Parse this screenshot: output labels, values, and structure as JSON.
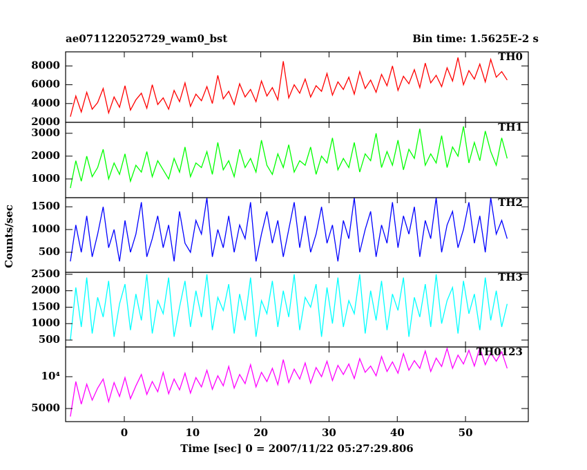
{
  "chart_data": [
    {
      "type": "line",
      "title": "ae071122052729_wam0_bst",
      "subtitle": "Bin time: 1.5625E-2 s",
      "ylim": [
        2000,
        9500
      ],
      "yticks": [
        2000,
        4000,
        6000,
        8000
      ],
      "series": [
        {
          "name": "TH0",
          "color": "#ff0000",
          "values": [
            2600,
            4800,
            3100,
            5200,
            3400,
            4100,
            5600,
            3000,
            4700,
            3600,
            5900,
            3300,
            4400,
            5100,
            3500,
            6000,
            3900,
            4600,
            3400,
            5400,
            4200,
            6200,
            3700,
            5000,
            4300,
            5800,
            4000,
            7000,
            4500,
            5300,
            3900,
            6100,
            4700,
            5500,
            4200,
            6400,
            4800,
            5700,
            4400,
            8500,
            4600,
            6000,
            5100,
            6600,
            4700,
            5900,
            5300,
            7200,
            4900,
            6300,
            5500,
            6800,
            5000,
            7400,
            5600,
            6500,
            5200,
            7100,
            5900,
            8000,
            5400,
            6900,
            6100,
            7600,
            5700,
            8300,
            6200,
            7000,
            5800,
            7800,
            6400,
            8900,
            6000,
            7500,
            6600,
            8200,
            6300,
            8700,
            6800,
            7400,
            6500
          ]
        }
      ]
    },
    {
      "type": "line",
      "ylim": [
        180,
        3480
      ],
      "yticks": [
        1000,
        2000,
        3000
      ],
      "series": [
        {
          "name": "TH1",
          "color": "#00ff00",
          "values": [
            600,
            1800,
            900,
            2000,
            1100,
            1500,
            2300,
            1000,
            1700,
            1200,
            2100,
            900,
            1600,
            1300,
            2200,
            1100,
            1800,
            1400,
            1000,
            1900,
            1300,
            2400,
            1100,
            1700,
            1500,
            2200,
            1200,
            2600,
            1400,
            1800,
            1100,
            2300,
            1500,
            1900,
            1300,
            2700,
            1600,
            1200,
            2100,
            1500,
            2500,
            1300,
            1800,
            1600,
            2400,
            1200,
            2000,
            1700,
            2800,
            1400,
            1900,
            1500,
            2600,
            1300,
            2100,
            1800,
            3000,
            1500,
            2200,
            1600,
            2700,
            1400,
            2300,
            1900,
            3200,
            1600,
            2100,
            1700,
            2900,
            1500,
            2400,
            2000,
            3300,
            1700,
            2600,
            1800,
            3100,
            2200,
            1600,
            2800,
            1900
          ]
        }
      ]
    },
    {
      "type": "line",
      "ylabel": "Counts/sec",
      "ylim": [
        60,
        1700
      ],
      "yticks": [
        500,
        1000,
        1500
      ],
      "series": [
        {
          "name": "TH2",
          "color": "#0000ff",
          "values": [
            300,
            1100,
            500,
            1300,
            400,
            900,
            1500,
            600,
            1000,
            300,
            1200,
            500,
            900,
            1600,
            400,
            800,
            1300,
            600,
            1100,
            300,
            1400,
            700,
            500,
            1200,
            900,
            1700,
            400,
            1000,
            600,
            1300,
            500,
            1100,
            800,
            1600,
            300,
            900,
            1400,
            700,
            1200,
            400,
            1000,
            1600,
            600,
            1300,
            500,
            900,
            1500,
            700,
            1100,
            300,
            1200,
            800,
            1700,
            500,
            1000,
            1400,
            400,
            1100,
            700,
            1600,
            600,
            1300,
            900,
            1500,
            400,
            1200,
            800,
            1700,
            500,
            1100,
            1400,
            600,
            1000,
            1600,
            700,
            1300,
            500,
            1700,
            900,
            1200,
            800
          ]
        }
      ]
    },
    {
      "type": "line",
      "ylim": [
        290,
        2560
      ],
      "yticks": [
        500,
        1000,
        1500,
        2000,
        2500
      ],
      "series": [
        {
          "name": "TH3",
          "color": "#00ffff",
          "values": [
            500,
            2100,
            900,
            2400,
            700,
            1800,
            1200,
            2300,
            600,
            1600,
            2200,
            800,
            1900,
            1100,
            2500,
            700,
            1700,
            1300,
            2400,
            600,
            1500,
            2300,
            900,
            2000,
            1200,
            2500,
            800,
            1800,
            1400,
            2200,
            700,
            1900,
            1100,
            2400,
            600,
            1700,
            1300,
            2300,
            900,
            2000,
            1200,
            2500,
            800,
            1800,
            1500,
            2200,
            600,
            2100,
            1000,
            2400,
            900,
            1700,
            1300,
            2500,
            700,
            2000,
            1100,
            2300,
            800,
            1900,
            1400,
            2400,
            600,
            1800,
            1200,
            2200,
            900,
            2500,
            1000,
            1700,
            2100,
            700,
            2300,
            1300,
            1900,
            800,
            2400,
            1100,
            2000,
            900,
            1600
          ]
        }
      ]
    },
    {
      "type": "line",
      "log": true,
      "ylim": [
        3760,
        19100
      ],
      "yticks": [
        5000,
        {
          "value": 10000,
          "label": "10⁴"
        }
      ],
      "xlabel": "Time [sec] 0 = 2007/11/22 05:27:29.806",
      "xlim": [
        -8.6,
        59.2
      ],
      "xticks": [
        0,
        10,
        20,
        30,
        40,
        50
      ],
      "x": [
        -7.9,
        -7.1,
        -6.3,
        -5.5,
        -4.7,
        -3.9,
        -3.1,
        -2.3,
        -1.5,
        -0.7,
        0.1,
        0.9,
        1.7,
        2.5,
        3.3,
        4.1,
        4.9,
        5.7,
        6.5,
        7.3,
        8.1,
        8.9,
        9.7,
        10.5,
        11.3,
        12.1,
        12.9,
        13.7,
        14.5,
        15.3,
        16.1,
        16.9,
        17.7,
        18.5,
        19.3,
        20.1,
        20.9,
        21.7,
        22.5,
        23.3,
        24.1,
        24.9,
        25.7,
        26.5,
        27.3,
        28.1,
        28.9,
        29.7,
        30.5,
        31.3,
        32.1,
        32.9,
        33.7,
        34.5,
        35.3,
        36.1,
        36.9,
        37.7,
        38.5,
        39.3,
        40.1,
        40.9,
        41.7,
        42.5,
        43.3,
        44.1,
        44.9,
        45.7,
        46.5,
        47.3,
        48.1,
        48.9,
        49.7,
        50.5,
        51.3,
        52.1,
        52.9,
        53.7,
        54.5,
        55.3,
        56.1
      ],
      "series": [
        {
          "name": "TH0123",
          "color": "#ff00ff",
          "values": [
            4200,
            9000,
            5500,
            8500,
            6000,
            7800,
            9500,
            5800,
            8800,
            6500,
            9800,
            6200,
            8200,
            10500,
            6800,
            9000,
            7200,
            11000,
            6900,
            9500,
            7500,
            10800,
            7000,
            9800,
            8000,
            11500,
            7600,
            10200,
            8200,
            12500,
            7800,
            10500,
            8600,
            13000,
            8000,
            11000,
            9000,
            12000,
            8400,
            14500,
            8800,
            11800,
            9500,
            13500,
            8700,
            12200,
            10000,
            14000,
            9200,
            12800,
            10500,
            13200,
            9600,
            14800,
            11000,
            12600,
            10200,
            15500,
            11200,
            13800,
            10800,
            16500,
            11500,
            14200,
            12000,
            17500,
            11200,
            15000,
            12500,
            18500,
            12000,
            16000,
            13200,
            17800,
            12600,
            18800,
            13000,
            16800,
            14000,
            17200,
            12000
          ]
        }
      ]
    }
  ]
}
